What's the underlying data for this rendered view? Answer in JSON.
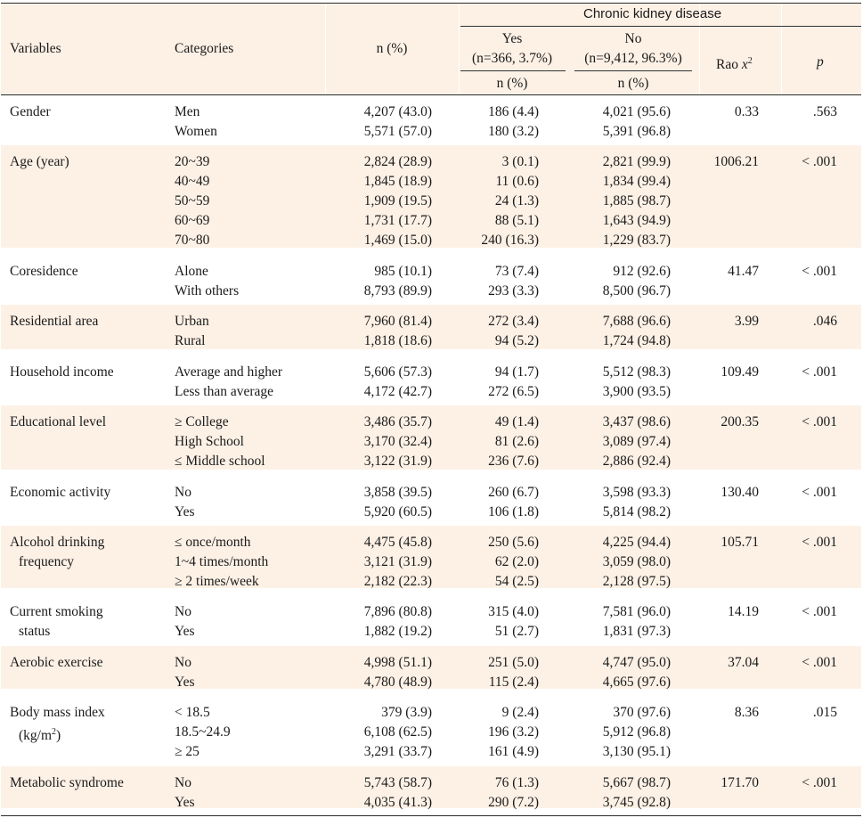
{
  "header": {
    "group_title": "Chronic kidney disease",
    "variables": "Variables",
    "categories": "Categories",
    "n_pct": "n (%)",
    "yes_label": "Yes",
    "yes_sub": "(n=366, 3.7%)",
    "yes_n": "n (%)",
    "no_label": "No",
    "no_sub": "(n=9,412, 96.3%)",
    "no_n": "n (%)",
    "rao_label": "Rao ",
    "rao_x": "x",
    "rao_sup": "2",
    "p_label": "p"
  },
  "rows": [
    {
      "variable": [
        "Gender"
      ],
      "categories": [
        "Men",
        "Women"
      ],
      "n": [
        "4,207 (43.0)",
        "5,571 (57.0)"
      ],
      "yes": [
        "186 (4.4)",
        "180 (3.2)"
      ],
      "no": [
        "4,021 (95.6)",
        "5,391 (96.8)"
      ],
      "rao": "0.33",
      "p": ".563"
    },
    {
      "variable": [
        "Age (year)"
      ],
      "categories": [
        "20~39",
        "40~49",
        "50~59",
        "60~69",
        "70~80"
      ],
      "n": [
        "2,824 (28.9)",
        "1,845 (18.9)",
        "1,909 (19.5)",
        "1,731 (17.7)",
        "1,469 (15.0)"
      ],
      "yes": [
        "3 (0.1)",
        "11 (0.6)",
        "24 (1.3)",
        "88 (5.1)",
        "240 (16.3)"
      ],
      "no": [
        "2,821 (99.9)",
        "1,834 (99.4)",
        "1,885 (98.7)",
        "1,643 (94.9)",
        "1,229 (83.7)"
      ],
      "rao": "1006.21",
      "p": "< .001"
    },
    {
      "variable": [
        "Coresidence"
      ],
      "categories": [
        "Alone",
        "With others"
      ],
      "n": [
        "985 (10.1)",
        "8,793 (89.9)"
      ],
      "yes": [
        "73 (7.4)",
        "293 (3.3)"
      ],
      "no": [
        "912 (92.6)",
        "8,500 (96.7)"
      ],
      "rao": "41.47",
      "p": "< .001"
    },
    {
      "variable": [
        "Residential area"
      ],
      "categories": [
        "Urban",
        "Rural"
      ],
      "n": [
        "7,960 (81.4)",
        "1,818 (18.6)"
      ],
      "yes": [
        "272 (3.4)",
        "94 (5.2)"
      ],
      "no": [
        "7,688 (96.6)",
        "1,724 (94.8)"
      ],
      "rao": "3.99",
      "p": ".046"
    },
    {
      "variable": [
        "Household income"
      ],
      "categories": [
        "Average and higher",
        "Less than average"
      ],
      "n": [
        "5,606 (57.3)",
        "4,172 (42.7)"
      ],
      "yes": [
        "94 (1.7)",
        "272 (6.5)"
      ],
      "no": [
        "5,512 (98.3)",
        "3,900 (93.5)"
      ],
      "rao": "109.49",
      "p": "< .001"
    },
    {
      "variable": [
        "Educational level"
      ],
      "categories": [
        "≥ College",
        "High School",
        "≤ Middle school"
      ],
      "n": [
        "3,486 (35.7)",
        "3,170 (32.4)",
        "3,122 (31.9)"
      ],
      "yes": [
        "49 (1.4)",
        "81 (2.6)",
        "236 (7.6)"
      ],
      "no": [
        "3,437 (98.6)",
        "3,089 (97.4)",
        "2,886 (92.4)"
      ],
      "rao": "200.35",
      "p": "< .001"
    },
    {
      "variable": [
        "Economic activity"
      ],
      "categories": [
        "No",
        "Yes"
      ],
      "n": [
        "3,858 (39.5)",
        "5,920 (60.5)"
      ],
      "yes": [
        "260 (6.7)",
        "106 (1.8)"
      ],
      "no": [
        "3,598 (93.3)",
        "5,814 (98.2)"
      ],
      "rao": "130.40",
      "p": "< .001"
    },
    {
      "variable": [
        "Alcohol drinking",
        "frequency"
      ],
      "categories": [
        "≤ once/month",
        "1~4 times/month",
        "≥ 2 times/week"
      ],
      "n": [
        "4,475 (45.8)",
        "3,121 (31.9)",
        "2,182 (22.3)"
      ],
      "yes": [
        "250 (5.6)",
        "62 (2.0)",
        "54 (2.5)"
      ],
      "no": [
        "4,225 (94.4)",
        "3,059 (98.0)",
        "2,128 (97.5)"
      ],
      "rao": "105.71",
      "p": "< .001"
    },
    {
      "variable": [
        "Current smoking",
        "status"
      ],
      "categories": [
        "No",
        "Yes"
      ],
      "n": [
        "7,896 (80.8)",
        "1,882 (19.2)"
      ],
      "yes": [
        "315 (4.0)",
        "51 (2.7)"
      ],
      "no": [
        "7,581 (96.0)",
        "1,831 (97.3)"
      ],
      "rao": "14.19",
      "p": "< .001"
    },
    {
      "variable": [
        "Aerobic exercise"
      ],
      "categories": [
        "No",
        "Yes"
      ],
      "n": [
        "4,998 (51.1)",
        "4,780 (48.9)"
      ],
      "yes": [
        "251 (5.0)",
        "115 (2.4)"
      ],
      "no": [
        "4,747 (95.0)",
        "4,665 (97.6)"
      ],
      "rao": "37.04",
      "p": "< .001"
    },
    {
      "variable": [
        "Body mass index"
      ],
      "variable_unit": {
        "pre": "(kg/m",
        "sup": "2",
        "post": ")"
      },
      "categories": [
        "< 18.5",
        "18.5~24.9",
        "≥ 25"
      ],
      "n": [
        "379 (3.9)",
        "6,108 (62.5)",
        "3,291 (33.7)"
      ],
      "yes": [
        "9 (2.4)",
        "196 (3.2)",
        "161 (4.9)"
      ],
      "no": [
        "370 (97.6)",
        "5,912 (96.8)",
        "3,130 (95.1)"
      ],
      "rao": "8.36",
      "p": ".015"
    },
    {
      "variable": [
        "Metabolic syndrome"
      ],
      "categories": [
        "No",
        "Yes"
      ],
      "n": [
        "5,743 (58.7)",
        "4,035 (41.3)"
      ],
      "yes": [
        "76 (1.3)",
        "290 (7.2)"
      ],
      "no": [
        "5,667 (98.7)",
        "3,745 (92.8)"
      ],
      "rao": "171.70",
      "p": "< .001"
    }
  ]
}
